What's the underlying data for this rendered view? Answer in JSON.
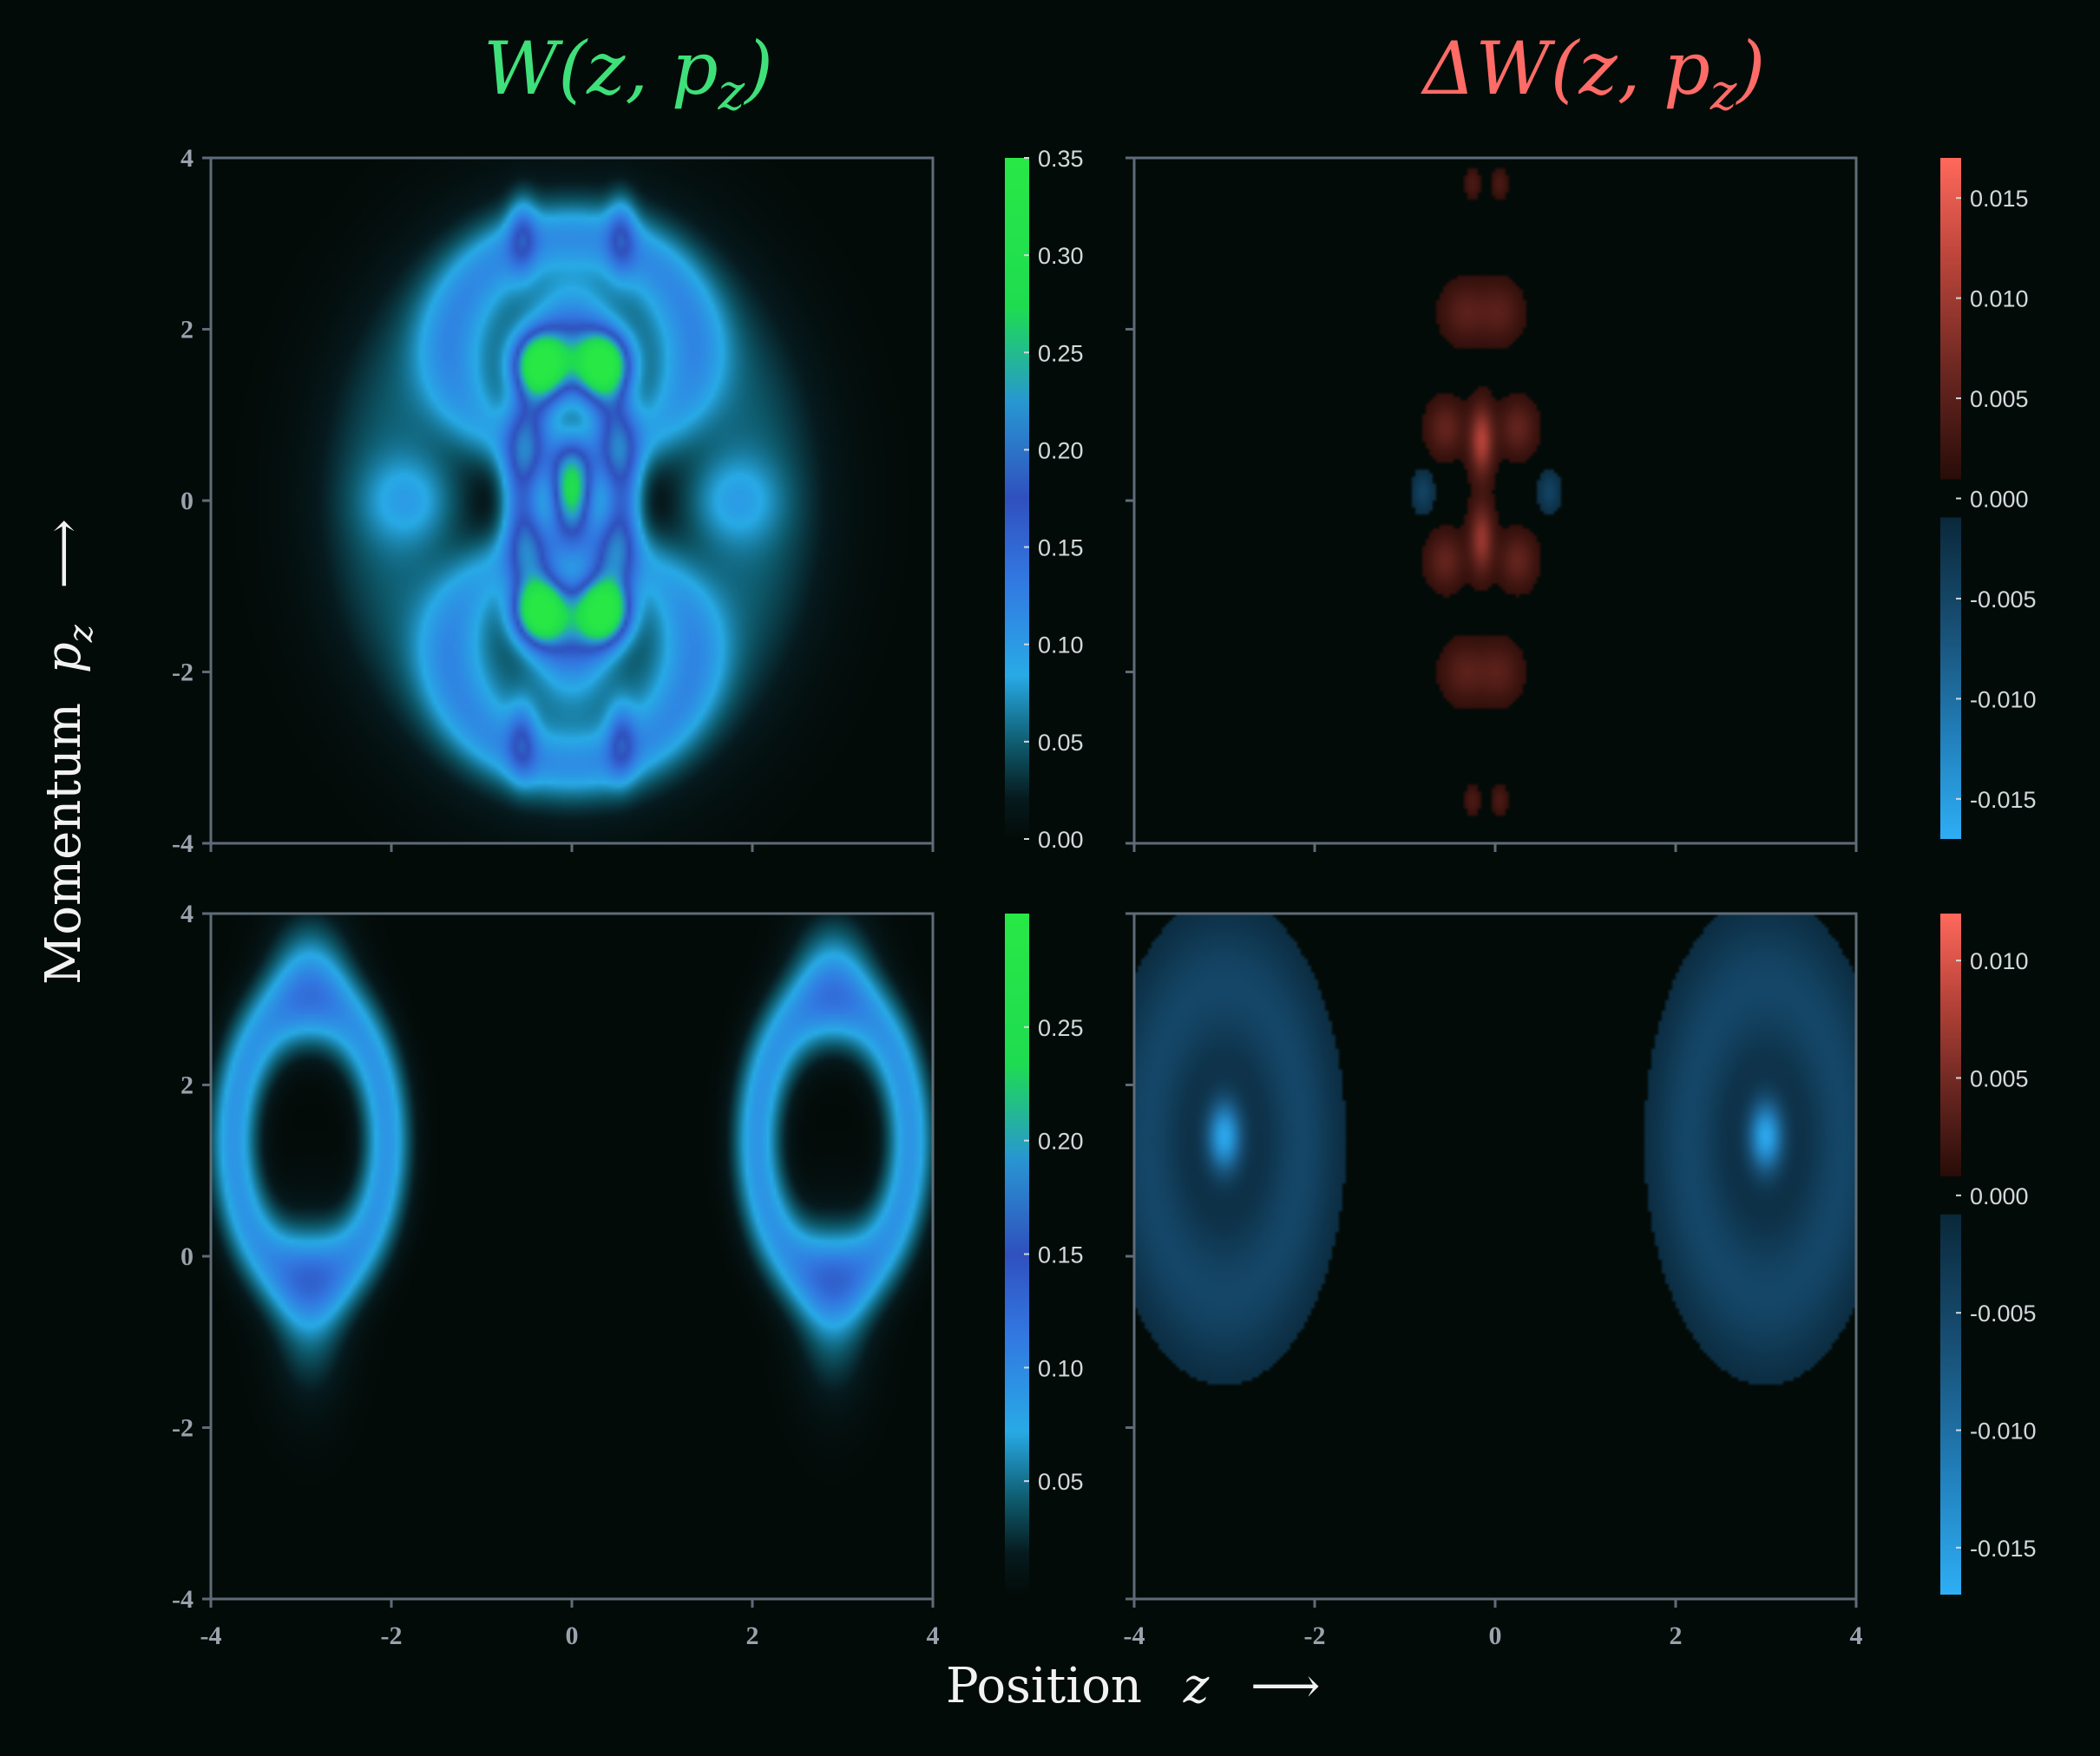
{
  "titles": {
    "left": "W(z, p_z)",
    "right": "ΔW(z, p_z)",
    "left_color": "#3fe07a",
    "right_color": "#ff6b66"
  },
  "axis_labels": {
    "y_text": "Momentum",
    "y_symbol": "p",
    "y_sub": "z",
    "x_text": "Position",
    "x_symbol": "z",
    "arrow": "⟶"
  },
  "colors": {
    "background": "#030b08",
    "frame": "#5f6b78",
    "tick_text": "#9aa3ad",
    "colorbar_text": "#d4d8dc",
    "positive": "#ff6b5c",
    "negative": "#2eaef5",
    "density_low": "#0c3b44",
    "density_mid": "#2b9ff0",
    "density_high": "#1fe84a"
  },
  "chart_data": [
    {
      "id": "W-top",
      "type": "heatmap",
      "quantity": "W",
      "xlim": [
        -4,
        4
      ],
      "ylim": [
        -4,
        4
      ],
      "xticks": [
        "-4",
        "-2",
        "0",
        "2",
        "4"
      ],
      "yticks": [
        "-4",
        "-2",
        "0",
        "2",
        "4"
      ],
      "show_x_labels": false,
      "colorbar": {
        "min": 0.0,
        "max": 0.35,
        "ticks": [
          "0.00",
          "0.05",
          "0.10",
          "0.15",
          "0.20",
          "0.25",
          "0.30",
          "0.35"
        ]
      },
      "features": [
        {
          "kind": "ring",
          "z": 0.0,
          "p": 0.1,
          "rz": 0.55,
          "rp": 1.6,
          "w": 0.28,
          "amp": 0.14
        },
        {
          "kind": "ring",
          "z": 0.0,
          "p": 1.8,
          "rz": 1.35,
          "rp": 1.3,
          "w": 0.2,
          "amp": 0.07
        },
        {
          "kind": "ring",
          "z": 0.0,
          "p": -1.8,
          "rz": 1.35,
          "rp": 1.3,
          "w": 0.2,
          "amp": 0.07
        },
        {
          "kind": "ring",
          "z": 0.0,
          "p": 0.0,
          "rz": 2.0,
          "rp": 2.6,
          "w": 0.3,
          "amp": 0.05
        },
        {
          "kind": "blob",
          "z": -0.35,
          "p": 1.6,
          "sz": 0.2,
          "sp": 0.24,
          "amp": 0.27
        },
        {
          "kind": "blob",
          "z": 0.35,
          "p": 1.6,
          "sz": 0.2,
          "sp": 0.24,
          "amp": 0.27
        },
        {
          "kind": "blob",
          "z": -0.35,
          "p": -1.3,
          "sz": 0.2,
          "sp": 0.24,
          "amp": 0.27
        },
        {
          "kind": "blob",
          "z": 0.35,
          "p": -1.3,
          "sz": 0.2,
          "sp": 0.24,
          "amp": 0.27
        },
        {
          "kind": "blob",
          "z": 0.0,
          "p": 0.1,
          "sz": 0.16,
          "sp": 0.35,
          "amp": 0.26
        },
        {
          "kind": "blob",
          "z": -0.55,
          "p": 3.1,
          "sz": 0.11,
          "sp": 0.3,
          "amp": 0.08
        },
        {
          "kind": "blob",
          "z": 0.55,
          "p": 3.1,
          "sz": 0.11,
          "sp": 0.3,
          "amp": 0.08
        },
        {
          "kind": "blob",
          "z": -0.55,
          "p": -2.8,
          "sz": 0.11,
          "sp": 0.3,
          "amp": 0.08
        },
        {
          "kind": "blob",
          "z": 0.55,
          "p": -2.8,
          "sz": 0.11,
          "sp": 0.3,
          "amp": 0.08
        },
        {
          "kind": "blob",
          "z": -1.8,
          "p": 0.0,
          "sz": 0.35,
          "sp": 0.35,
          "amp": 0.05
        },
        {
          "kind": "blob",
          "z": 1.8,
          "p": 0.0,
          "sz": 0.35,
          "sp": 0.35,
          "amp": 0.05
        }
      ]
    },
    {
      "id": "dW-top",
      "type": "heatmap",
      "quantity": "ΔW",
      "xlim": [
        -4,
        4
      ],
      "ylim": [
        -4,
        4
      ],
      "xticks": [
        "-4",
        "-2",
        "0",
        "2",
        "4"
      ],
      "yticks": [
        "-4",
        "-2",
        "0",
        "2",
        "4"
      ],
      "show_x_labels": false,
      "show_y_labels": false,
      "colorbar": {
        "min": -0.017,
        "max": 0.017,
        "ticks": [
          "0.015",
          "0.010",
          "0.005",
          "0.000",
          "-0.005",
          "-0.010",
          "-0.015"
        ]
      },
      "features": [
        {
          "kind": "blob",
          "z": -0.15,
          "p": 0.7,
          "sz": 0.09,
          "sp": 0.28,
          "amp": 0.011
        },
        {
          "kind": "blob",
          "z": -0.15,
          "p": -0.45,
          "sz": 0.09,
          "sp": 0.28,
          "amp": 0.009
        },
        {
          "kind": "blob",
          "z": -0.55,
          "p": 0.85,
          "sz": 0.14,
          "sp": 0.22,
          "amp": 0.005
        },
        {
          "kind": "blob",
          "z": 0.25,
          "p": 0.85,
          "sz": 0.14,
          "sp": 0.22,
          "amp": 0.005
        },
        {
          "kind": "blob",
          "z": -0.55,
          "p": -0.7,
          "sz": 0.14,
          "sp": 0.22,
          "amp": 0.005
        },
        {
          "kind": "blob",
          "z": 0.25,
          "p": -0.7,
          "sz": 0.14,
          "sp": 0.22,
          "amp": 0.005
        },
        {
          "kind": "blob",
          "z": -0.35,
          "p": 2.2,
          "sz": 0.17,
          "sp": 0.24,
          "amp": 0.004
        },
        {
          "kind": "blob",
          "z": 0.05,
          "p": 2.2,
          "sz": 0.17,
          "sp": 0.24,
          "amp": 0.004
        },
        {
          "kind": "blob",
          "z": -0.35,
          "p": -2.0,
          "sz": 0.17,
          "sp": 0.24,
          "amp": 0.004
        },
        {
          "kind": "blob",
          "z": 0.05,
          "p": -2.0,
          "sz": 0.17,
          "sp": 0.24,
          "amp": 0.004
        },
        {
          "kind": "blob",
          "z": -0.25,
          "p": 3.7,
          "sz": 0.06,
          "sp": 0.12,
          "amp": 0.003
        },
        {
          "kind": "blob",
          "z": 0.05,
          "p": 3.7,
          "sz": 0.06,
          "sp": 0.12,
          "amp": 0.003
        },
        {
          "kind": "blob",
          "z": -0.25,
          "p": -3.5,
          "sz": 0.06,
          "sp": 0.12,
          "amp": 0.003
        },
        {
          "kind": "blob",
          "z": 0.05,
          "p": -3.5,
          "sz": 0.06,
          "sp": 0.12,
          "amp": 0.003
        },
        {
          "kind": "blob",
          "z": -0.8,
          "p": 0.1,
          "sz": 0.08,
          "sp": 0.16,
          "amp": -0.004
        },
        {
          "kind": "blob",
          "z": 0.6,
          "p": 0.1,
          "sz": 0.08,
          "sp": 0.16,
          "amp": -0.004
        }
      ]
    },
    {
      "id": "W-bottom",
      "type": "heatmap",
      "quantity": "W",
      "xlim": [
        -4,
        4
      ],
      "ylim": [
        -4,
        4
      ],
      "xticks": [
        "-4",
        "-2",
        "0",
        "2",
        "4"
      ],
      "yticks": [
        "-4",
        "-2",
        "0",
        "2",
        "4"
      ],
      "show_x_labels": true,
      "colorbar": {
        "min": 0.0,
        "max": 0.3,
        "ticks": [
          "0.05",
          "0.10",
          "0.15",
          "0.20",
          "0.25"
        ]
      },
      "features": [
        {
          "kind": "ring",
          "z": -2.9,
          "p": 1.35,
          "rz": 0.85,
          "rp": 1.6,
          "w": 0.22,
          "amp": 0.09
        },
        {
          "kind": "ring",
          "z": 2.9,
          "p": 1.35,
          "rz": 0.85,
          "rp": 1.6,
          "w": 0.22,
          "amp": 0.09
        },
        {
          "kind": "blob",
          "z": -2.9,
          "p": -0.6,
          "sz": 0.28,
          "sp": 0.7,
          "amp": 0.05
        },
        {
          "kind": "blob",
          "z": 2.9,
          "p": -0.6,
          "sz": 0.28,
          "sp": 0.7,
          "amp": 0.05
        },
        {
          "kind": "blob",
          "z": -2.9,
          "p": 3.4,
          "sz": 0.3,
          "sp": 0.45,
          "amp": 0.05
        },
        {
          "kind": "blob",
          "z": 2.9,
          "p": 3.4,
          "sz": 0.3,
          "sp": 0.45,
          "amp": 0.05
        }
      ]
    },
    {
      "id": "dW-bottom",
      "type": "heatmap",
      "quantity": "ΔW",
      "xlim": [
        -4,
        4
      ],
      "ylim": [
        -4,
        4
      ],
      "xticks": [
        "-4",
        "-2",
        "0",
        "2",
        "4"
      ],
      "yticks": [
        "-4",
        "-2",
        "0",
        "2",
        "4"
      ],
      "show_x_labels": true,
      "show_y_labels": false,
      "colorbar": {
        "min": -0.017,
        "max": 0.012,
        "ticks": [
          "0.010",
          "0.005",
          "0.000",
          "-0.005",
          "-0.010",
          "-0.015"
        ]
      },
      "features": [
        {
          "kind": "ring",
          "z": -3.0,
          "p": 1.35,
          "rz": 0.85,
          "rp": 1.8,
          "w": 0.32,
          "amp": -0.0045
        },
        {
          "kind": "ring",
          "z": 3.0,
          "p": 1.35,
          "rz": 0.85,
          "rp": 1.8,
          "w": 0.32,
          "amp": -0.0045
        },
        {
          "kind": "blob",
          "z": -3.0,
          "p": 1.4,
          "sz": 0.14,
          "sp": 0.3,
          "amp": -0.016
        },
        {
          "kind": "blob",
          "z": 3.0,
          "p": 1.4,
          "sz": 0.14,
          "sp": 0.3,
          "amp": -0.016
        }
      ]
    }
  ]
}
